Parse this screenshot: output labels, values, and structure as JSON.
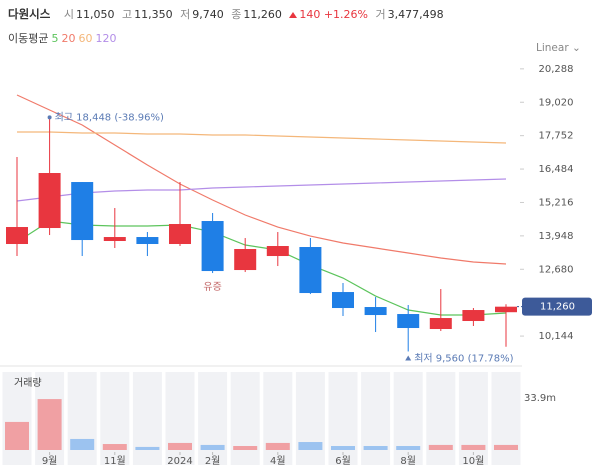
{
  "header": {
    "name": "다원시스",
    "open_label": "시",
    "open": "11,050",
    "high_label": "고",
    "high": "11,350",
    "low_label": "저",
    "low": "9,740",
    "close_label": "종",
    "close": "11,260",
    "change": "140",
    "change_pct": "+1.26%",
    "volume_label": "거",
    "volume": "3,477,498"
  },
  "controls": {
    "scale": "Linear"
  },
  "chart_data": {
    "type": "candlestick",
    "categories": [
      null,
      "9월",
      null,
      "11월",
      null,
      "2024",
      "2월",
      null,
      "4월",
      null,
      "6월",
      null,
      "8월",
      null,
      "10월",
      null
    ],
    "open": [
      13639,
      14246,
      15992,
      13753,
      13904,
      13639,
      14512,
      12651,
      13183,
      13525,
      11816,
      11247,
      10981,
      10412,
      10716,
      11050
    ],
    "high": [
      16941,
      18448,
      15992,
      15005,
      14094,
      15992,
      14816,
      13866,
      14094,
      13866,
      12158,
      11626,
      11323,
      11930,
      11209,
      11350
    ],
    "low": [
      13183,
      13980,
      13183,
      13487,
      13183,
      13563,
      12537,
      12575,
      12803,
      11740,
      10905,
      10298,
      9560,
      10336,
      10526,
      9740
    ],
    "close": [
      14284,
      16334,
      13790,
      13904,
      13639,
      14398,
      12613,
      13449,
      13563,
      11778,
      11209,
      10943,
      10450,
      10829,
      11133,
      11260
    ],
    "up_color": "#e8363f",
    "down_color": "#1f7fe6",
    "events": [
      null,
      null,
      null,
      null,
      null,
      null,
      "유증",
      null,
      null,
      null,
      null,
      null,
      null,
      null,
      null,
      null
    ],
    "annotations": {
      "high": "최고 18,448 (-38.96%)",
      "low": "최저 9,560 (17.78%)"
    },
    "last_label": "11,260",
    "legend_title": "이동평균",
    "series": [
      {
        "name": "5",
        "color": "#5cc45c",
        "values": [
          13714,
          14512,
          14360,
          14322,
          14322,
          14360,
          14094,
          13601,
          13411,
          12841,
          12348,
          11664,
          11133,
          10943,
          10943,
          11019
        ]
      },
      {
        "name": "20",
        "color": "#f07a6a",
        "values": [
          19295,
          18726,
          18156,
          17397,
          16638,
          15917,
          15309,
          14740,
          14284,
          13942,
          13677,
          13487,
          13297,
          13107,
          12955,
          12879
        ]
      },
      {
        "name": "60",
        "color": "#f4b77a",
        "values": [
          17891,
          17891,
          17853,
          17853,
          17815,
          17815,
          17777,
          17777,
          17739,
          17701,
          17663,
          17625,
          17587,
          17549,
          17511,
          17473
        ]
      },
      {
        "name": "120",
        "color": "#b38ee8",
        "values": [
          15271,
          15423,
          15575,
          15651,
          15689,
          15689,
          15765,
          15803,
          15840,
          15878,
          15916,
          15954,
          15992,
          16030,
          16068,
          16106
        ]
      }
    ],
    "ylim": [
      9160,
      20700
    ],
    "yticks": [
      {
        "value": 10144,
        "label": "10,144"
      },
      {
        "value": 12680,
        "label": "12,680"
      },
      {
        "value": 13948,
        "label": "13,948"
      },
      {
        "value": 15216,
        "label": "15,216"
      },
      {
        "value": 16484,
        "label": "16,484"
      },
      {
        "value": 17752,
        "label": "17,752"
      },
      {
        "value": 19020,
        "label": "19,020"
      },
      {
        "value": 20288,
        "label": "20,288"
      }
    ],
    "volume": {
      "title": "거래량",
      "up_color": "#f0a0a3",
      "down_color": "#9cc3f0",
      "values": [
        18.3,
        33.2,
        7.2,
        3.9,
        2.0,
        4.6,
        3.3,
        2.6,
        4.6,
        5.2,
        2.6,
        2.6,
        2.6,
        3.3,
        3.3,
        3.3
      ],
      "ylim": [
        0,
        50.85
      ],
      "yticks": [
        {
          "value": 33.9,
          "label": "33.9m"
        }
      ]
    }
  }
}
